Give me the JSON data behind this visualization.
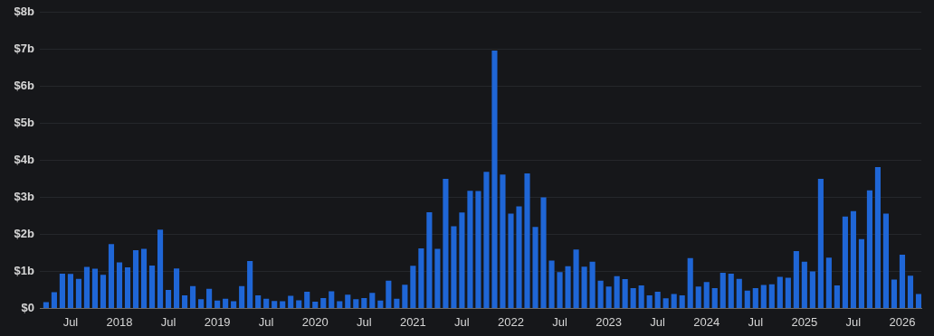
{
  "chart_data": {
    "type": "bar",
    "color": "#1f66d6",
    "x": [
      "2017-04",
      "2017-05",
      "2017-06",
      "2017-07",
      "2017-08",
      "2017-09",
      "2017-10",
      "2017-11",
      "2017-12",
      "2018-01",
      "2018-02",
      "2018-03",
      "2018-04",
      "2018-05",
      "2018-06",
      "2018-07",
      "2018-08",
      "2018-09",
      "2018-10",
      "2018-11",
      "2018-12",
      "2019-01",
      "2019-02",
      "2019-03",
      "2019-04",
      "2019-05",
      "2019-06",
      "2019-07",
      "2019-08",
      "2019-09",
      "2019-10",
      "2019-11",
      "2019-12",
      "2020-01",
      "2020-02",
      "2020-03",
      "2020-04",
      "2020-05",
      "2020-06",
      "2020-07",
      "2020-08",
      "2020-09",
      "2020-10",
      "2020-11",
      "2020-12",
      "2021-01",
      "2021-02",
      "2021-03",
      "2021-04",
      "2021-05",
      "2021-06",
      "2021-07",
      "2021-08",
      "2021-09",
      "2021-10",
      "2021-11",
      "2021-12",
      "2022-01",
      "2022-02",
      "2022-03",
      "2022-04",
      "2022-05",
      "2022-06",
      "2022-07",
      "2022-08",
      "2022-09",
      "2022-10",
      "2022-11",
      "2022-12",
      "2023-01",
      "2023-02",
      "2023-03",
      "2023-04",
      "2023-05",
      "2023-06",
      "2023-07",
      "2023-08",
      "2023-09",
      "2023-10",
      "2023-11",
      "2023-12",
      "2024-01",
      "2024-02",
      "2024-03",
      "2024-04",
      "2024-05",
      "2024-06",
      "2024-07",
      "2024-08",
      "2024-09",
      "2024-10",
      "2024-11",
      "2024-12",
      "2025-01",
      "2025-02",
      "2025-03",
      "2025-04",
      "2025-05",
      "2025-06",
      "2025-07",
      "2025-08",
      "2025-09",
      "2025-10",
      "2025-11",
      "2025-12",
      "2026-01",
      "2026-02",
      "2026-03"
    ],
    "values": [
      0.17,
      0.44,
      0.94,
      0.93,
      0.8,
      1.12,
      1.07,
      0.91,
      1.74,
      1.24,
      1.11,
      1.57,
      1.61,
      1.16,
      2.13,
      0.5,
      1.08,
      0.35,
      0.6,
      0.25,
      0.53,
      0.21,
      0.26,
      0.19,
      0.6,
      1.28,
      0.35,
      0.26,
      0.2,
      0.19,
      0.34,
      0.22,
      0.45,
      0.18,
      0.28,
      0.46,
      0.19,
      0.37,
      0.25,
      0.28,
      0.42,
      0.21,
      0.75,
      0.26,
      0.64,
      1.15,
      1.62,
      2.6,
      1.61,
      3.5,
      2.22,
      2.59,
      3.18,
      3.17,
      3.69,
      6.97,
      3.62,
      2.56,
      2.76,
      3.65,
      2.2,
      3.0,
      1.29,
      0.98,
      1.14,
      1.59,
      1.13,
      1.26,
      0.75,
      0.59,
      0.87,
      0.79,
      0.55,
      0.62,
      0.35,
      0.45,
      0.27,
      0.39,
      0.35,
      1.36,
      0.59,
      0.71,
      0.55,
      0.96,
      0.94,
      0.8,
      0.48,
      0.55,
      0.63,
      0.65,
      0.85,
      0.83,
      1.55,
      1.26,
      1.0,
      3.5,
      1.37,
      0.62,
      2.48,
      2.63,
      1.87,
      3.19,
      3.82,
      2.56,
      0.78,
      1.45,
      0.88,
      0.39
    ],
    "xlim": [
      "2017-03-08",
      "2026-03-11"
    ],
    "xticks": [
      {
        "value": "2017-07",
        "label": "Jul"
      },
      {
        "value": "2018-01",
        "label": "2018"
      },
      {
        "value": "2018-07",
        "label": "Jul"
      },
      {
        "value": "2019-01",
        "label": "2019"
      },
      {
        "value": "2019-07",
        "label": "Jul"
      },
      {
        "value": "2020-01",
        "label": "2020"
      },
      {
        "value": "2020-07",
        "label": "Jul"
      },
      {
        "value": "2021-01",
        "label": "2021"
      },
      {
        "value": "2021-07",
        "label": "Jul"
      },
      {
        "value": "2022-01",
        "label": "2022"
      },
      {
        "value": "2022-07",
        "label": "Jul"
      },
      {
        "value": "2023-01",
        "label": "2023"
      },
      {
        "value": "2023-07",
        "label": "Jul"
      },
      {
        "value": "2024-01",
        "label": "2024"
      },
      {
        "value": "2024-07",
        "label": "Jul"
      },
      {
        "value": "2025-01",
        "label": "2025"
      },
      {
        "value": "2025-07",
        "label": "Jul"
      },
      {
        "value": "2026-01",
        "label": "2026"
      }
    ],
    "ylim": [
      0,
      8
    ],
    "yticks": [
      {
        "value": 0,
        "label": "$0"
      },
      {
        "value": 1,
        "label": "$1b"
      },
      {
        "value": 2,
        "label": "$2b"
      },
      {
        "value": 3,
        "label": "$3b"
      },
      {
        "value": 4,
        "label": "$4b"
      },
      {
        "value": 5,
        "label": "$5b"
      },
      {
        "value": 6,
        "label": "$6b"
      },
      {
        "value": 7,
        "label": "$7b"
      },
      {
        "value": 8,
        "label": "$8b"
      }
    ],
    "grid": "y"
  }
}
